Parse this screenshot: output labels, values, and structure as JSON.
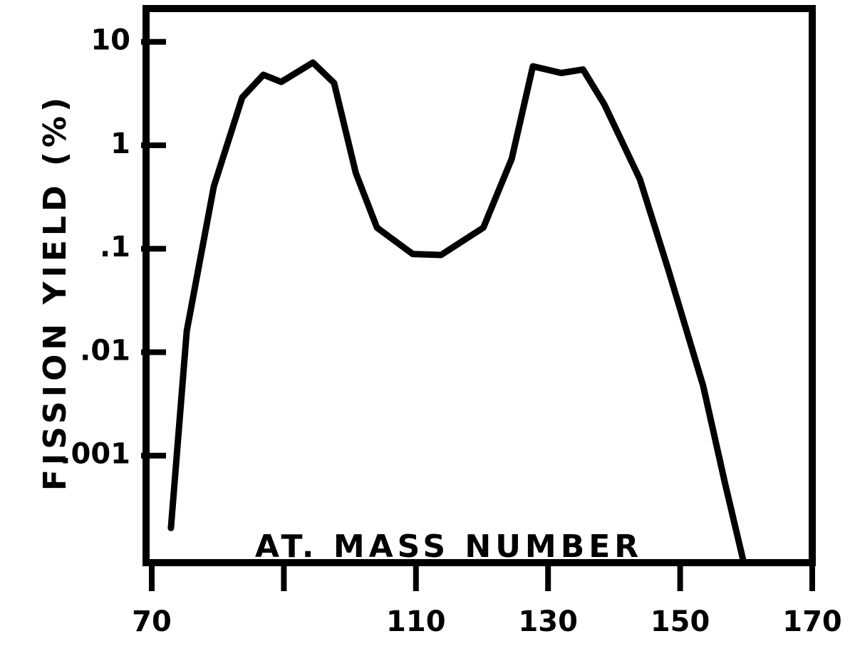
{
  "chart_data": {
    "type": "line",
    "x_label": "AT. MASS NUMBER",
    "y_label": "FISSION YIELD (%)",
    "ylog": true,
    "color": "#000000",
    "xlim": [
      70,
      170
    ],
    "ylim": [
      0.0001,
      20
    ],
    "xticks": [
      70,
      {
        "value": 90,
        "label": null
      },
      110,
      130,
      150,
      170
    ],
    "yticks": [
      10,
      1,
      {
        "value": 0.1,
        "label": ".1"
      },
      {
        "value": 0.01,
        "label": ".01"
      },
      {
        "value": 0.001,
        "label": ".001"
      }
    ],
    "x": [
      72.9,
      75.3,
      79.4,
      83.7,
      86.9,
      89.6,
      94.4,
      97.6,
      100.9,
      104.1,
      109.5,
      113.8,
      120.2,
      124.5,
      127.7,
      132,
      135.3,
      138.5,
      143.9,
      148.2,
      153.5,
      156.8,
      159.5
    ],
    "values": [
      0.0002,
      0.016,
      0.4,
      2.9,
      4.8,
      4.1,
      6.3,
      4,
      0.54,
      0.16,
      0.089,
      0.087,
      0.16,
      0.74,
      5.8,
      5,
      5.4,
      2.5,
      0.47,
      0.063,
      0.0047,
      0.00054,
      0.0001
    ]
  }
}
